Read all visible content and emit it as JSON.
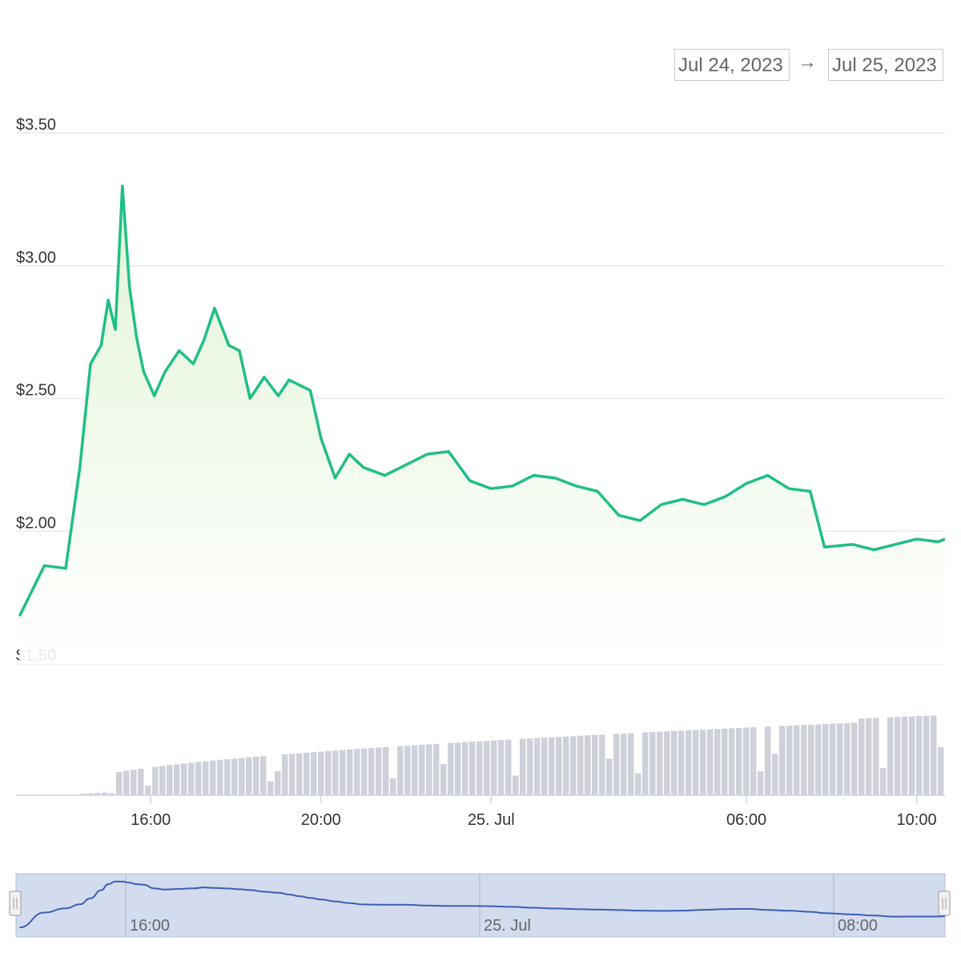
{
  "range_selector": {
    "from": "Jul 24, 2023",
    "arrow": "→",
    "to": "Jul 25, 2023"
  },
  "colors": {
    "price_line": "#1fbf84",
    "area_top": "#e3f5da",
    "volume_bar": "#ced1da",
    "navigator_fill": "#d3dcef",
    "navigator_line": "#3a5fb4"
  },
  "chart_data": {
    "type": "line",
    "title": "",
    "xlabel": "",
    "ylabel": "",
    "ylim": [
      1.5,
      3.5
    ],
    "y_tick_labels": [
      "$3.50",
      "$3.00",
      "$2.50",
      "$2.00",
      "$1.50"
    ],
    "x_tick_labels": [
      "16:00",
      "20:00",
      "25. Jul",
      "06:00",
      "10:00"
    ],
    "grid": true,
    "series": [
      {
        "x": [
          "24 Jul 12:55",
          "24 Jul 13:30",
          "24 Jul 14:00",
          "24 Jul 14:20",
          "24 Jul 14:35",
          "24 Jul 14:50",
          "24 Jul 15:00",
          "24 Jul 15:10",
          "24 Jul 15:20",
          "24 Jul 15:30",
          "24 Jul 15:40",
          "24 Jul 15:50",
          "24 Jul 16:05",
          "24 Jul 16:20",
          "24 Jul 16:40",
          "24 Jul 17:00",
          "24 Jul 17:15",
          "24 Jul 17:30",
          "24 Jul 17:50",
          "24 Jul 18:05",
          "24 Jul 18:20",
          "24 Jul 18:40",
          "24 Jul 19:00",
          "24 Jul 19:15",
          "24 Jul 19:30",
          "24 Jul 19:45",
          "24 Jul 20:00",
          "24 Jul 20:20",
          "24 Jul 20:40",
          "24 Jul 21:00",
          "24 Jul 21:30",
          "24 Jul 22:00",
          "24 Jul 22:30",
          "24 Jul 23:00",
          "24 Jul 23:30",
          "25 Jul 00:00",
          "25 Jul 00:30",
          "25 Jul 01:00",
          "25 Jul 01:30",
          "25 Jul 02:00",
          "25 Jul 02:30",
          "25 Jul 03:00",
          "25 Jul 03:30",
          "25 Jul 04:00",
          "25 Jul 04:30",
          "25 Jul 05:00",
          "25 Jul 05:30",
          "25 Jul 06:00",
          "25 Jul 06:30",
          "25 Jul 07:00",
          "25 Jul 07:30",
          "25 Jul 07:50",
          "25 Jul 08:30",
          "25 Jul 09:00",
          "25 Jul 09:30",
          "25 Jul 10:00",
          "25 Jul 10:30",
          "25 Jul 10:40"
        ],
        "values": [
          1.68,
          1.87,
          1.86,
          2.24,
          2.63,
          2.7,
          2.87,
          2.76,
          3.3,
          2.92,
          2.73,
          2.6,
          2.51,
          2.6,
          2.68,
          2.63,
          2.72,
          2.84,
          2.7,
          2.68,
          2.5,
          2.58,
          2.51,
          2.57,
          2.55,
          2.53,
          2.35,
          2.2,
          2.29,
          2.24,
          2.21,
          2.25,
          2.29,
          2.3,
          2.19,
          2.16,
          2.17,
          2.21,
          2.2,
          2.17,
          2.15,
          2.06,
          2.04,
          2.1,
          2.12,
          2.1,
          2.13,
          2.18,
          2.21,
          2.16,
          2.15,
          1.94,
          1.95,
          1.93,
          1.95,
          1.97,
          1.96,
          1.97
        ]
      }
    ]
  }
}
